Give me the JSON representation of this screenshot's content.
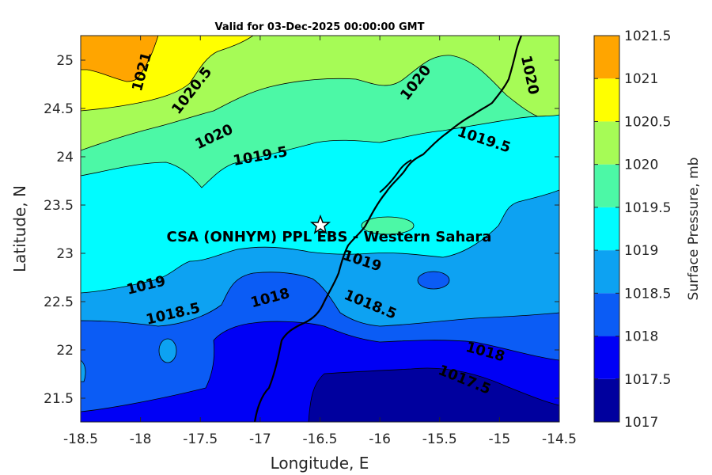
{
  "title": "Valid for 03-Dec-2025 00:00:00 GMT",
  "xlabel": "Longitude, E",
  "ylabel": "Latitude, N",
  "colorbar_label": "Surface Pressure, mb",
  "site_label": "CSA (ONHYM) PPL EBS  - Western Sahara",
  "site_marker_icon": "star-icon",
  "x_ticks": [
    "-18.5",
    "-18",
    "-17.5",
    "-17",
    "-16.5",
    "-16",
    "-15.5",
    "-15",
    "-14.5"
  ],
  "y_ticks": [
    "25",
    "24.5",
    "24",
    "23.5",
    "23",
    "22.5",
    "22",
    "21.5"
  ],
  "colorbar": {
    "levels": [
      "1017",
      "1017.5",
      "1018",
      "1018.5",
      "1019",
      "1019.5",
      "1020",
      "1020.5",
      "1021",
      "1021.5"
    ],
    "colors": [
      "#00009e",
      "#0000f5",
      "#0b5cf5",
      "#0da2f2",
      "#00fcff",
      "#4cf8a6",
      "#a6fb56",
      "#ffff00",
      "#ffa500",
      "#ff5500"
    ]
  },
  "contour_labels": {
    "c1021": "1021",
    "c1020_5": "1020.5",
    "c1020_a": "1020",
    "c1020_b": "1020",
    "c1020_c": "1020",
    "c1019_5_a": "1019.5",
    "c1019_5_b": "1019.5",
    "c1019_a": "1019",
    "c1019_b": "1019",
    "c1018_5_a": "1018.5",
    "c1018_5_b": "1018.5",
    "c1018_a": "1018",
    "c1018_b": "1018",
    "c1017_5": "1017.5"
  },
  "chart_data": {
    "type": "contour map",
    "variable": "Surface Pressure, mb",
    "xlim": [
      -18.5,
      -14.5
    ],
    "ylim": [
      21.25,
      25.25
    ],
    "site": {
      "lon": -16.5,
      "lat": 23.3
    }
  }
}
